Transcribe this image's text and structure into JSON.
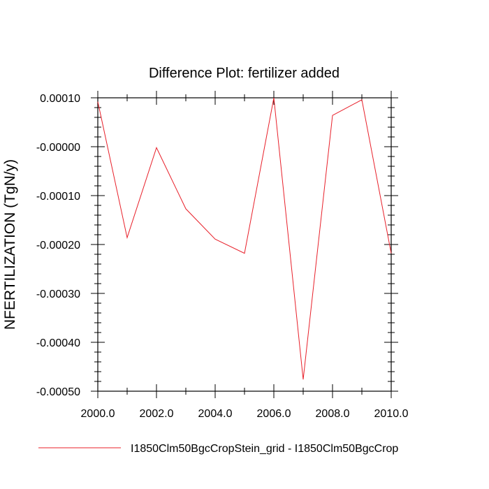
{
  "chart_data": {
    "type": "line",
    "title": "Difference Plot: fertilizer added",
    "xlabel": "",
    "ylabel": "NFERTILIZATION  (TgN/y)",
    "xlim": [
      2000,
      2010
    ],
    "ylim": [
      -0.0005,
      0.0001
    ],
    "x_ticks": [
      2000,
      2002,
      2004,
      2006,
      2008,
      2010
    ],
    "x_tick_labels": [
      "2000.0",
      "2002.0",
      "2004.0",
      "2006.0",
      "2008.0",
      "2010.0"
    ],
    "y_ticks": [
      0.0001,
      0,
      -0.0001,
      -0.0002,
      -0.0003,
      -0.0004,
      -0.0005
    ],
    "y_tick_labels": [
      "0.00010",
      "-0.00000",
      "-0.00010",
      "-0.00020",
      "-0.00030",
      "-0.00040",
      "-0.00050"
    ],
    "grid": false,
    "legend_position": "bottom",
    "series": [
      {
        "name": "I1850Clm50BgcCropStein_grid - I1850Clm50BgcCrop",
        "color": "#e8202a",
        "x": [
          2000,
          2001,
          2002,
          2003,
          2004,
          2005,
          2006,
          2007,
          2008,
          2009,
          2010
        ],
        "y": [
          9.2e-05,
          -0.000186,
          -2e-06,
          -0.000127,
          -0.000189,
          -0.000218,
          0.0001,
          -0.000476,
          6.4e-05,
          9.6e-05,
          -0.000218
        ]
      }
    ]
  }
}
